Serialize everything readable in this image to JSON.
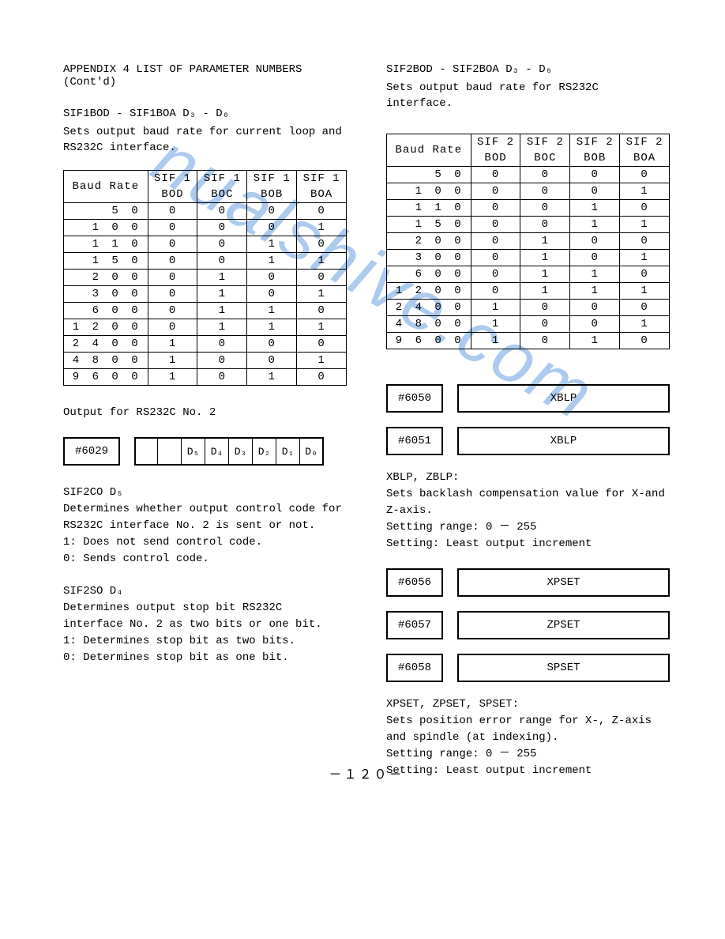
{
  "watermark": "nualshive.com",
  "page_number": "－１２０－",
  "left": {
    "heading": "APPENDIX 4  LIST OF PARAMETER NUMBERS (Cont'd)",
    "sif1_title": "SIF1BOD - SIF1BOA  D₃ - D₀",
    "sif1_desc": "Sets output baud rate for current loop and RS232C interface.",
    "table1": {
      "header1": [
        "Baud Rate",
        "SIF 1",
        "SIF 1",
        "SIF 1",
        "SIF 1"
      ],
      "header2": [
        "",
        "BOD",
        "BOC",
        "BOB",
        "BOA"
      ],
      "rows": [
        [
          "5 0",
          "0",
          "0",
          "0",
          "0"
        ],
        [
          "1 0 0",
          "0",
          "0",
          "0",
          "1"
        ],
        [
          "1 1 0",
          "0",
          "0",
          "1",
          "0"
        ],
        [
          "1 5 0",
          "0",
          "0",
          "1",
          "1"
        ],
        [
          "2 0 0",
          "0",
          "1",
          "0",
          "0"
        ],
        [
          "3 0 0",
          "0",
          "1",
          "0",
          "1"
        ],
        [
          "6 0 0",
          "0",
          "1",
          "1",
          "0"
        ],
        [
          "1 2 0 0",
          "0",
          "1",
          "1",
          "1"
        ],
        [
          "2 4 0 0",
          "1",
          "0",
          "0",
          "0"
        ],
        [
          "4 8 0 0",
          "1",
          "0",
          "0",
          "1"
        ],
        [
          "9 6 0 0",
          "1",
          "0",
          "1",
          "0"
        ]
      ]
    },
    "output_for": "Output for RS232C No. 2",
    "bit_param": "#6029",
    "bit_cells": [
      "",
      "",
      "D₅",
      "D₄",
      "D₃",
      "D₂",
      "D₁",
      "D₀"
    ],
    "sif2co_title": "SIF2CO  D₅",
    "sif2co_desc": "Determines whether output control code for RS232C interface No. 2 is sent or not.",
    "sif2co_1": "1:  Does not send control code.",
    "sif2co_0": "0:  Sends control code.",
    "sif2so_title": "SIF2SO  D₄",
    "sif2so_desc": "Determines output stop bit RS232C interface No. 2 as two bits or one bit.",
    "sif2so_1": "1:  Determines stop bit as two bits.",
    "sif2so_0": "0:  Determines stop bit as one bit."
  },
  "right": {
    "sif2_title": "SIF2BOD - SIF2BOA  D₃ - D₀",
    "sif2_desc": "Sets output baud rate for RS232C interface.",
    "table2": {
      "header1": [
        "Baud Rate",
        "SIF 2",
        "SIF 2",
        "SIF 2",
        "SIF 2"
      ],
      "header2": [
        "",
        "BOD",
        "BOC",
        "BOB",
        "BOA"
      ],
      "rows": [
        [
          "5 0",
          "0",
          "0",
          "0",
          "0"
        ],
        [
          "1 0 0",
          "0",
          "0",
          "0",
          "1"
        ],
        [
          "1 1 0",
          "0",
          "0",
          "1",
          "0"
        ],
        [
          "1 5 0",
          "0",
          "0",
          "1",
          "1"
        ],
        [
          "2 0 0",
          "0",
          "1",
          "0",
          "0"
        ],
        [
          "3 0 0",
          "0",
          "1",
          "0",
          "1"
        ],
        [
          "6 0 0",
          "0",
          "1",
          "1",
          "0"
        ],
        [
          "1 2 0 0",
          "0",
          "1",
          "1",
          "1"
        ],
        [
          "2 4 0 0",
          "1",
          "0",
          "0",
          "0"
        ],
        [
          "4 8 0 0",
          "1",
          "0",
          "0",
          "1"
        ],
        [
          "9 6 0 0",
          "1",
          "0",
          "1",
          "0"
        ]
      ]
    },
    "p6050": {
      "num": "#6050",
      "label": "XBLP"
    },
    "p6051": {
      "num": "#6051",
      "label": "XBLP"
    },
    "xblp_title": "XBLP, ZBLP:",
    "xblp_desc": "Sets backlash compensation value for X-and Z-axis.",
    "xblp_range": "Setting range:  0 － 255",
    "xblp_setting": "Setting:  Least output increment",
    "p6056": {
      "num": "#6056",
      "label": "XPSET"
    },
    "p6057": {
      "num": "#6057",
      "label": "ZPSET"
    },
    "p6058": {
      "num": "#6058",
      "label": "SPSET"
    },
    "pset_title": "XPSET, ZPSET, SPSET:",
    "pset_desc": "Sets position error range for X-, Z-axis and spindle (at indexing).",
    "pset_range": "Setting range:  0 － 255",
    "pset_setting": "Setting:  Least output increment"
  }
}
